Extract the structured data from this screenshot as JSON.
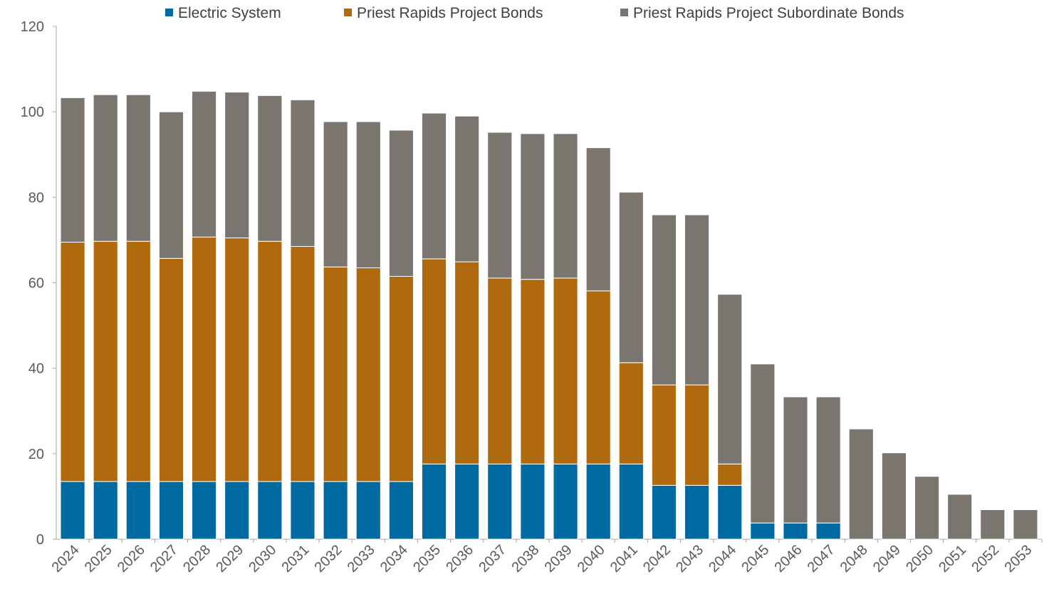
{
  "chart_data": {
    "type": "bar",
    "stacked": true,
    "title": "",
    "xlabel": "",
    "ylabel": "",
    "ylim": [
      0,
      120
    ],
    "yticks": [
      0,
      20,
      40,
      60,
      80,
      100,
      120
    ],
    "grid": false,
    "legend_position": "top",
    "categories": [
      "2024",
      "2025",
      "2026",
      "2027",
      "2028",
      "2029",
      "2030",
      "2031",
      "2032",
      "2033",
      "2034",
      "2035",
      "2036",
      "2037",
      "2038",
      "2039",
      "2040",
      "2041",
      "2042",
      "2043",
      "2044",
      "2045",
      "2046",
      "2047",
      "2048",
      "2049",
      "2050",
      "2051",
      "2052",
      "2053"
    ],
    "series": [
      {
        "name": "Electric System",
        "color": "#00699f",
        "values": [
          13.5,
          13.5,
          13.5,
          13.5,
          13.5,
          13.5,
          13.5,
          13.5,
          13.5,
          13.5,
          13.5,
          17.6,
          17.6,
          17.6,
          17.6,
          17.6,
          17.6,
          17.6,
          12.6,
          12.6,
          12.6,
          3.8,
          3.8,
          3.8,
          0,
          0,
          0,
          0,
          0,
          0
        ]
      },
      {
        "name": "Priest Rapids Project Bonds",
        "color": "#af6a0d",
        "values": [
          56.0,
          56.2,
          56.2,
          52.2,
          57.2,
          57.0,
          56.2,
          55.0,
          50.2,
          50.0,
          48.0,
          48.0,
          47.3,
          43.5,
          43.2,
          43.5,
          40.5,
          23.7,
          23.5,
          23.5,
          5.0,
          0,
          0,
          0,
          0,
          0,
          0,
          0,
          0,
          0
        ]
      },
      {
        "name": "Priest Rapids Project Subordinate Bonds",
        "color": "#7b7570",
        "values": [
          33.8,
          34.3,
          34.3,
          34.3,
          34.1,
          34.1,
          34.1,
          34.3,
          34.0,
          34.2,
          34.2,
          34.1,
          34.1,
          34.1,
          34.1,
          33.8,
          33.5,
          39.9,
          39.8,
          39.8,
          39.7,
          37.2,
          29.5,
          29.5,
          25.8,
          20.2,
          14.7,
          10.5,
          6.9,
          6.9
        ]
      }
    ]
  }
}
